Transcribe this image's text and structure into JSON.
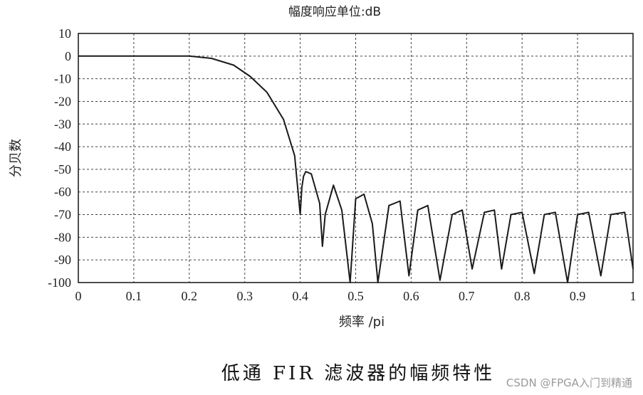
{
  "chart_data": {
    "type": "line",
    "title": "幅度响应单位:dB",
    "xlabel": "频率 /pi",
    "ylabel": "分贝数",
    "xlim": [
      0,
      1
    ],
    "ylim": [
      -100,
      10
    ],
    "grid": true,
    "x_ticks": [
      "0",
      "0.1",
      "0.2",
      "0.3",
      "0.4",
      "0.5",
      "0.6",
      "0.7",
      "0.8",
      "0.9",
      "1"
    ],
    "y_ticks": [
      "10",
      "0",
      "-10",
      "-20",
      "-30",
      "-40",
      "-50",
      "-60",
      "-70",
      "-80",
      "-90",
      "-100"
    ],
    "series": [
      {
        "values_x": [
          0.0,
          0.2,
          0.24,
          0.28,
          0.31,
          0.34,
          0.37,
          0.39,
          0.4,
          0.403,
          0.406,
          0.41,
          0.42,
          0.435,
          0.44,
          0.445,
          0.46,
          0.475,
          0.49,
          0.5,
          0.515,
          0.53,
          0.54,
          0.56,
          0.58,
          0.596,
          0.612,
          0.63,
          0.652,
          0.674,
          0.692,
          0.71,
          0.732,
          0.75,
          0.763,
          0.78,
          0.8,
          0.822,
          0.84,
          0.86,
          0.882,
          0.9,
          0.92,
          0.942,
          0.96,
          0.985,
          1.0
        ],
        "values_y": [
          0.0,
          0.0,
          -1.0,
          -4.0,
          -9.0,
          -16.0,
          -28.0,
          -44.0,
          -70.0,
          -58.0,
          -53.0,
          -51.0,
          -52.0,
          -65.0,
          -84.0,
          -70.0,
          -57.0,
          -68.0,
          -100.0,
          -63.0,
          -61.0,
          -74.0,
          -100.0,
          -66.0,
          -64.0,
          -97.0,
          -68.0,
          -66.0,
          -99.0,
          -70.0,
          -68.0,
          -94.0,
          -69.0,
          -68.0,
          -94.0,
          -70.0,
          -69.0,
          -96.0,
          -70.0,
          -69.0,
          -100.0,
          -70.0,
          -69.0,
          -97.0,
          -70.0,
          -69.0,
          -94.0
        ]
      }
    ]
  },
  "caption": "低通 FIR 滤波器的幅频特性",
  "watermark": "CSDN @FPGA入门到精通"
}
